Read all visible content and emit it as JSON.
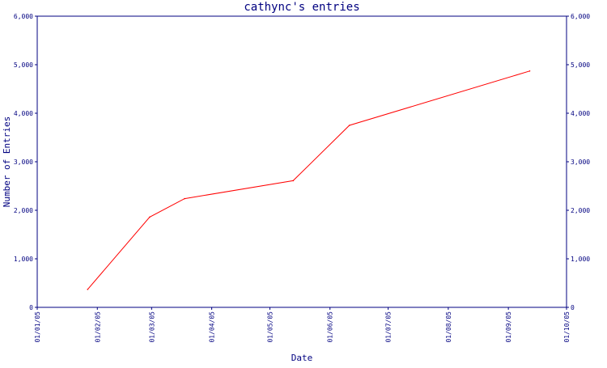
{
  "chart_data": {
    "type": "line",
    "title": "cathync's entries",
    "xlabel": "Date",
    "ylabel": "Number of Entries",
    "ylim": [
      0,
      6000
    ],
    "y_ticks": [
      0,
      1000,
      2000,
      3000,
      4000,
      5000,
      6000
    ],
    "y_tick_labels": [
      "0",
      "1,000",
      "2,000",
      "3,000",
      "4,000",
      "5,000",
      "6,000"
    ],
    "x_ticks": [
      "2005-01-01",
      "2005-02-01",
      "2005-03-01",
      "2005-04-01",
      "2005-05-01",
      "2005-06-01",
      "2005-07-01",
      "2005-08-01",
      "2005-09-01",
      "2005-10-01"
    ],
    "x_tick_labels": [
      "01/01/05",
      "01/02/05",
      "01/03/05",
      "01/04/05",
      "01/05/05",
      "01/06/05",
      "01/07/05",
      "01/08/05",
      "01/09/05",
      "01/10/05"
    ],
    "x": [
      "2005-01-27",
      "2005-02-28",
      "2005-03-18",
      "2005-05-13",
      "2005-06-11",
      "2005-09-12"
    ],
    "values": [
      370,
      1860,
      2240,
      2610,
      3750,
      4870
    ],
    "line_color": "#ff0000",
    "axis_color": "#000080",
    "grid": false,
    "right_axis_mirror": true
  }
}
